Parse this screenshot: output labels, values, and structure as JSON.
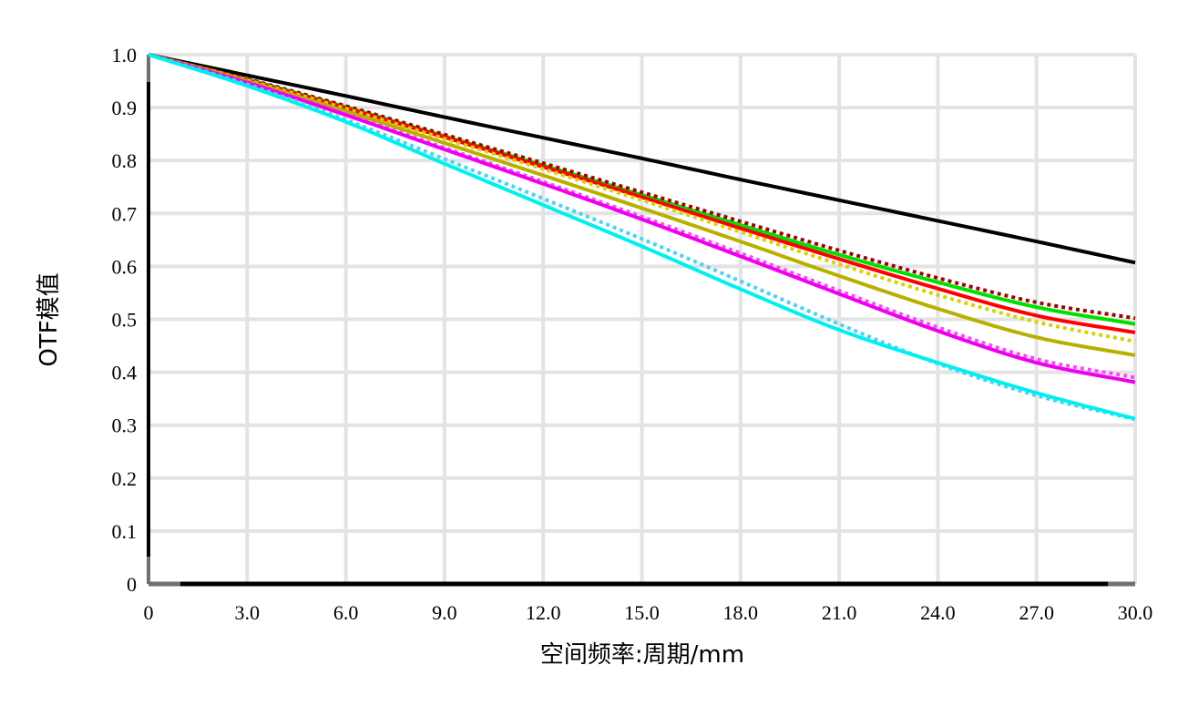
{
  "chart_data": {
    "type": "line",
    "title": "",
    "xlabel": "空间频率:周期/mm",
    "ylabel": "OTF模值",
    "xlim": [
      0,
      30
    ],
    "ylim": [
      0,
      1
    ],
    "xticks": [
      0,
      3,
      6,
      9,
      12,
      15,
      18,
      21,
      24,
      27,
      30
    ],
    "xtick_labels": [
      "0",
      "3.0",
      "6.0",
      "9.0",
      "12.0",
      "15.0",
      "18.0",
      "21.0",
      "24.0",
      "27.0",
      "30.0"
    ],
    "yticks": [
      0,
      0.1,
      0.2,
      0.3,
      0.4,
      0.5,
      0.6,
      0.7,
      0.8,
      0.9,
      1.0
    ],
    "ytick_labels": [
      "0",
      "0.1",
      "0.2",
      "0.3",
      "0.4",
      "0.5",
      "0.6",
      "0.7",
      "0.8",
      "0.9",
      "1.0"
    ],
    "grid": true,
    "legend": "none",
    "x": [
      0,
      3,
      6,
      9,
      12,
      15,
      18,
      21,
      24,
      27,
      30
    ],
    "series": [
      {
        "color": "#000000",
        "style": "solid",
        "values": [
          1.0,
          0.961,
          0.922,
          0.882,
          0.843,
          0.804,
          0.764,
          0.725,
          0.686,
          0.647,
          0.607
        ]
      },
      {
        "color": "#00e000",
        "style": "solid",
        "values": [
          1.0,
          0.953,
          0.901,
          0.846,
          0.791,
          0.735,
          0.678,
          0.622,
          0.57,
          0.523,
          0.491
        ]
      },
      {
        "color": "#a30000",
        "style": "dotted",
        "values": [
          1.0,
          0.954,
          0.903,
          0.849,
          0.795,
          0.74,
          0.685,
          0.63,
          0.578,
          0.532,
          0.502
        ]
      },
      {
        "color": "#ff0000",
        "style": "solid",
        "values": [
          1.0,
          0.952,
          0.899,
          0.844,
          0.788,
          0.731,
          0.672,
          0.614,
          0.558,
          0.507,
          0.475
        ]
      },
      {
        "color": "#d4d400",
        "style": "dotted",
        "values": [
          1.0,
          0.952,
          0.898,
          0.841,
          0.784,
          0.725,
          0.665,
          0.604,
          0.546,
          0.495,
          0.458
        ]
      },
      {
        "color": "#b8b000",
        "style": "solid",
        "values": [
          1.0,
          0.95,
          0.893,
          0.833,
          0.772,
          0.71,
          0.647,
          0.582,
          0.52,
          0.466,
          0.432
        ]
      },
      {
        "color": "#ff44ff",
        "style": "dotted",
        "values": [
          1.0,
          0.948,
          0.888,
          0.824,
          0.76,
          0.694,
          0.625,
          0.554,
          0.485,
          0.425,
          0.39
        ]
      },
      {
        "color": "#ee00ee",
        "style": "solid",
        "values": [
          1.0,
          0.947,
          0.886,
          0.821,
          0.756,
          0.689,
          0.619,
          0.548,
          0.478,
          0.418,
          0.381
        ]
      },
      {
        "color": "#4ad3f0",
        "style": "dotted",
        "values": [
          1.0,
          0.944,
          0.877,
          0.803,
          0.728,
          0.652,
          0.572,
          0.491,
          0.416,
          0.356,
          0.311
        ]
      },
      {
        "color": "#00f0f0",
        "style": "solid",
        "values": [
          1.0,
          0.941,
          0.873,
          0.794,
          0.716,
          0.638,
          0.557,
          0.48,
          0.418,
          0.361,
          0.312
        ]
      }
    ]
  }
}
